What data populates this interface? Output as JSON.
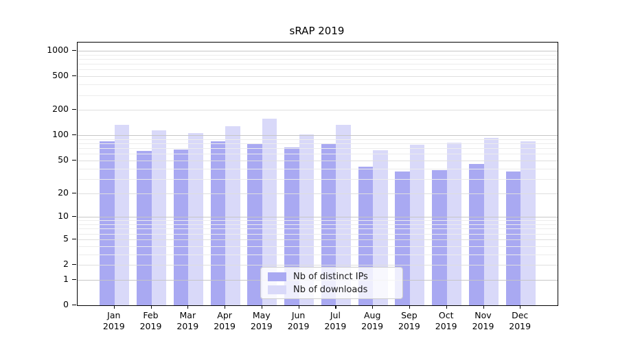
{
  "chart_data": {
    "type": "bar",
    "title": "sRAP 2019",
    "categories": [
      "Jan",
      "Feb",
      "Mar",
      "Apr",
      "May",
      "Jun",
      "Jul",
      "Aug",
      "Sep",
      "Oct",
      "Nov",
      "Dec"
    ],
    "year_label": "2019",
    "series": [
      {
        "name": "Nb of distinct IPs",
        "color": "#a9a9f2",
        "values": [
          84,
          65,
          67,
          85,
          80,
          71,
          79,
          42,
          37,
          38,
          45,
          37
        ]
      },
      {
        "name": "Nb of downloads",
        "color": "#d9d9f9",
        "values": [
          134,
          114,
          107,
          129,
          158,
          102,
          134,
          66,
          77,
          81,
          93,
          85
        ]
      }
    ],
    "y_scale": "log10(y+1)",
    "y_ticks": [
      0,
      1,
      2,
      5,
      10,
      20,
      50,
      100,
      200,
      500,
      1000
    ],
    "y_minor_ticks": [
      3,
      4,
      6,
      7,
      8,
      9,
      30,
      40,
      60,
      70,
      80,
      90,
      300,
      400,
      600,
      700,
      800,
      900
    ],
    "ylim": [
      0,
      1250
    ],
    "grid": true,
    "legend_position": "lower center",
    "colors": {
      "decade_gridline": "#c6c6c6",
      "mid_gridline": "#dedede",
      "minor_gridline": "#ececec",
      "axis": "#000000"
    }
  }
}
